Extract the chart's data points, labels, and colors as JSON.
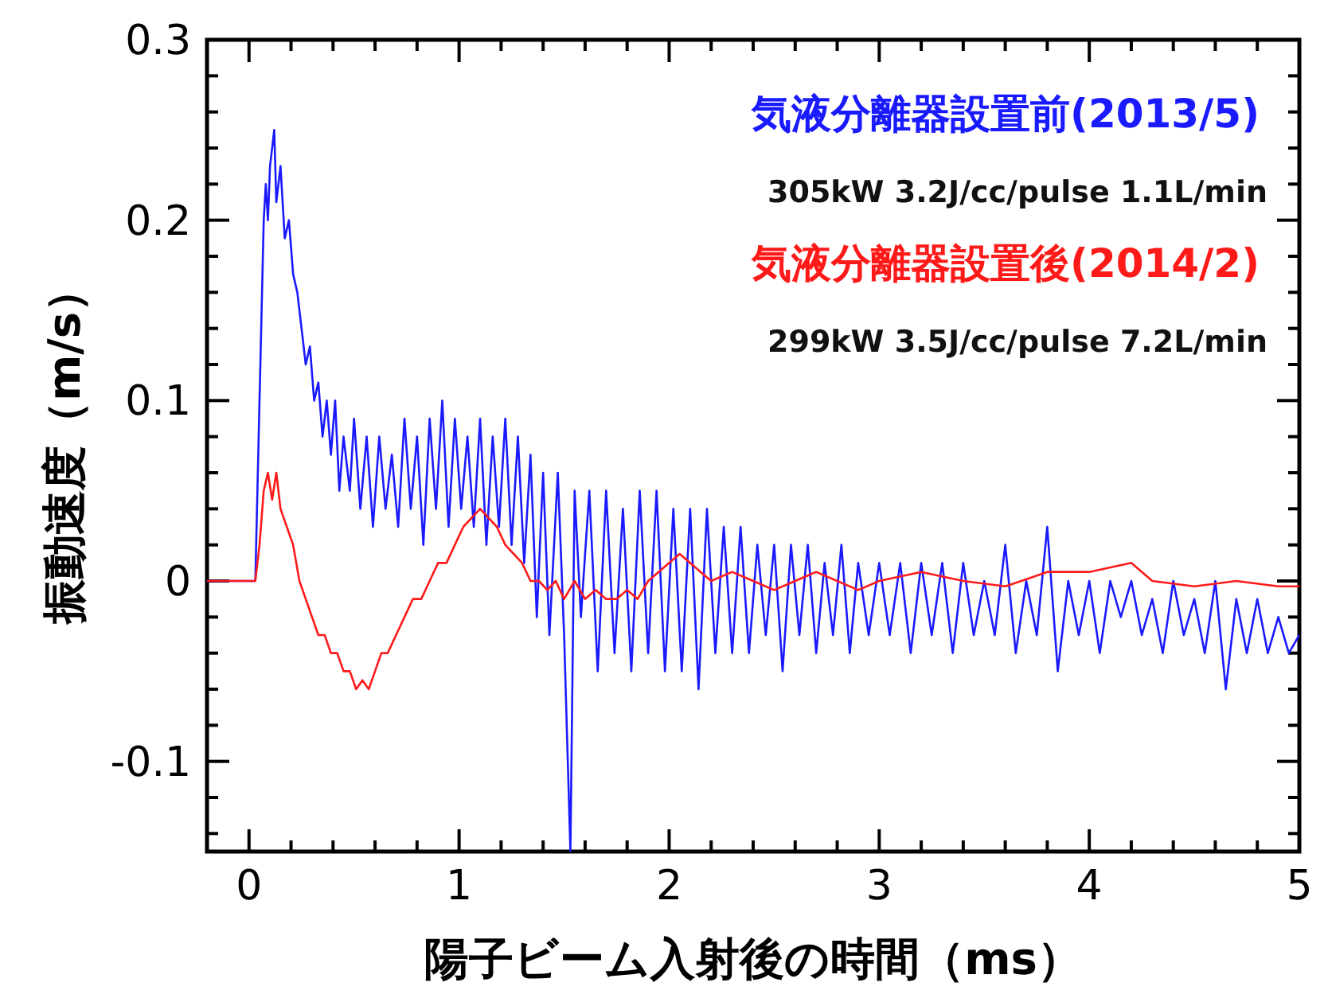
{
  "chart_data": {
    "type": "line",
    "xlabel": "陽子ビーム入射後の時間（ms）",
    "ylabel": "振動速度（m/s）",
    "xlim": [
      -0.2,
      5
    ],
    "ylim": [
      -0.15,
      0.3
    ],
    "xticks": [
      0,
      1,
      2,
      3,
      4,
      5
    ],
    "yticks": [
      -0.1,
      0,
      0.1,
      0.2,
      0.3
    ],
    "legend": "top right",
    "grid": false,
    "annotations": [
      "305kW 3.2J/cc/pulse 1.1L/min",
      "299kW 3.5J/cc/pulse 7.2L/min"
    ],
    "series": [
      {
        "name": "気液分離器設置前(2013/5)",
        "color": "#1a1aff",
        "x": [
          -0.2,
          0.03,
          0.05,
          0.07,
          0.08,
          0.09,
          0.1,
          0.12,
          0.13,
          0.15,
          0.17,
          0.19,
          0.21,
          0.23,
          0.25,
          0.27,
          0.29,
          0.31,
          0.33,
          0.35,
          0.37,
          0.39,
          0.41,
          0.43,
          0.45,
          0.48,
          0.5,
          0.53,
          0.56,
          0.59,
          0.62,
          0.65,
          0.68,
          0.71,
          0.74,
          0.77,
          0.8,
          0.83,
          0.86,
          0.89,
          0.92,
          0.95,
          0.98,
          1.01,
          1.04,
          1.07,
          1.1,
          1.13,
          1.16,
          1.19,
          1.22,
          1.25,
          1.28,
          1.31,
          1.34,
          1.37,
          1.4,
          1.43,
          1.47,
          1.5,
          1.53,
          1.55,
          1.58,
          1.62,
          1.66,
          1.7,
          1.74,
          1.78,
          1.82,
          1.86,
          1.9,
          1.94,
          1.98,
          2.02,
          2.06,
          2.1,
          2.14,
          2.18,
          2.22,
          2.26,
          2.3,
          2.34,
          2.38,
          2.42,
          2.46,
          2.5,
          2.54,
          2.58,
          2.62,
          2.66,
          2.7,
          2.74,
          2.78,
          2.82,
          2.86,
          2.9,
          2.95,
          3.0,
          3.05,
          3.1,
          3.15,
          3.2,
          3.25,
          3.3,
          3.35,
          3.4,
          3.45,
          3.5,
          3.55,
          3.6,
          3.65,
          3.7,
          3.75,
          3.8,
          3.85,
          3.9,
          3.95,
          4.0,
          4.05,
          4.1,
          4.15,
          4.2,
          4.25,
          4.3,
          4.35,
          4.4,
          4.45,
          4.5,
          4.55,
          4.6,
          4.65,
          4.7,
          4.75,
          4.8,
          4.85,
          4.9,
          4.95,
          5.0
        ],
        "values": [
          0,
          0,
          0.1,
          0.2,
          0.22,
          0.2,
          0.23,
          0.25,
          0.21,
          0.23,
          0.19,
          0.2,
          0.17,
          0.16,
          0.14,
          0.12,
          0.13,
          0.1,
          0.11,
          0.08,
          0.1,
          0.07,
          0.1,
          0.05,
          0.08,
          0.05,
          0.09,
          0.04,
          0.08,
          0.03,
          0.08,
          0.04,
          0.07,
          0.03,
          0.09,
          0.04,
          0.08,
          0.02,
          0.09,
          0.04,
          0.1,
          0.03,
          0.09,
          0.04,
          0.08,
          0.03,
          0.09,
          0.02,
          0.08,
          0.03,
          0.09,
          0.02,
          0.08,
          0.01,
          0.07,
          -0.02,
          0.06,
          -0.03,
          0.06,
          -0.03,
          -0.15,
          0.05,
          -0.02,
          0.05,
          -0.05,
          0.05,
          -0.04,
          0.04,
          -0.05,
          0.05,
          -0.04,
          0.05,
          -0.05,
          0.04,
          -0.05,
          0.04,
          -0.06,
          0.04,
          -0.04,
          0.03,
          -0.04,
          0.03,
          -0.04,
          0.02,
          -0.03,
          0.02,
          -0.05,
          0.02,
          -0.03,
          0.02,
          -0.04,
          0.01,
          -0.03,
          0.02,
          -0.04,
          0.01,
          -0.03,
          0.01,
          -0.03,
          0.01,
          -0.04,
          0.01,
          -0.03,
          0.01,
          -0.04,
          0.01,
          -0.03,
          0.0,
          -0.03,
          0.02,
          -0.04,
          0.0,
          -0.03,
          0.03,
          -0.05,
          0.0,
          -0.03,
          0.0,
          -0.04,
          0.0,
          -0.02,
          0.0,
          -0.03,
          -0.01,
          -0.04,
          0.0,
          -0.03,
          -0.01,
          -0.04,
          0.0,
          -0.06,
          -0.01,
          -0.04,
          -0.01,
          -0.04,
          -0.02,
          -0.04,
          -0.03
        ]
      },
      {
        "name": "気液分離器設置後(2014/2)",
        "color": "#ff1a1a",
        "x": [
          -0.2,
          0.03,
          0.05,
          0.07,
          0.09,
          0.11,
          0.13,
          0.15,
          0.18,
          0.21,
          0.24,
          0.27,
          0.3,
          0.33,
          0.36,
          0.39,
          0.42,
          0.45,
          0.48,
          0.51,
          0.54,
          0.57,
          0.6,
          0.63,
          0.66,
          0.7,
          0.74,
          0.78,
          0.82,
          0.86,
          0.9,
          0.94,
          0.98,
          1.02,
          1.06,
          1.1,
          1.14,
          1.18,
          1.22,
          1.26,
          1.3,
          1.34,
          1.38,
          1.42,
          1.46,
          1.5,
          1.55,
          1.6,
          1.65,
          1.7,
          1.75,
          1.8,
          1.85,
          1.9,
          1.95,
          2.0,
          2.05,
          2.1,
          2.15,
          2.2,
          2.3,
          2.4,
          2.5,
          2.6,
          2.7,
          2.8,
          2.9,
          3.0,
          3.2,
          3.4,
          3.6,
          3.8,
          4.0,
          4.2,
          4.3,
          4.5,
          4.7,
          4.9,
          5.0
        ],
        "values": [
          0,
          0,
          0.02,
          0.05,
          0.06,
          0.045,
          0.06,
          0.04,
          0.03,
          0.02,
          0.0,
          -0.01,
          -0.02,
          -0.03,
          -0.03,
          -0.04,
          -0.04,
          -0.05,
          -0.05,
          -0.06,
          -0.055,
          -0.06,
          -0.05,
          -0.04,
          -0.04,
          -0.03,
          -0.02,
          -0.01,
          -0.01,
          0.0,
          0.01,
          0.01,
          0.02,
          0.03,
          0.035,
          0.04,
          0.035,
          0.03,
          0.02,
          0.015,
          0.01,
          0.0,
          0.0,
          -0.005,
          0.0,
          -0.01,
          0.0,
          -0.01,
          -0.005,
          -0.01,
          -0.01,
          -0.005,
          -0.01,
          0.0,
          0.005,
          0.01,
          0.015,
          0.01,
          0.005,
          0.0,
          0.005,
          0.0,
          -0.005,
          0.0,
          0.005,
          0.0,
          -0.005,
          0.0,
          0.005,
          0.0,
          -0.003,
          0.005,
          0.005,
          0.01,
          0.0,
          -0.003,
          0.0,
          -0.003,
          -0.003
        ]
      }
    ]
  }
}
